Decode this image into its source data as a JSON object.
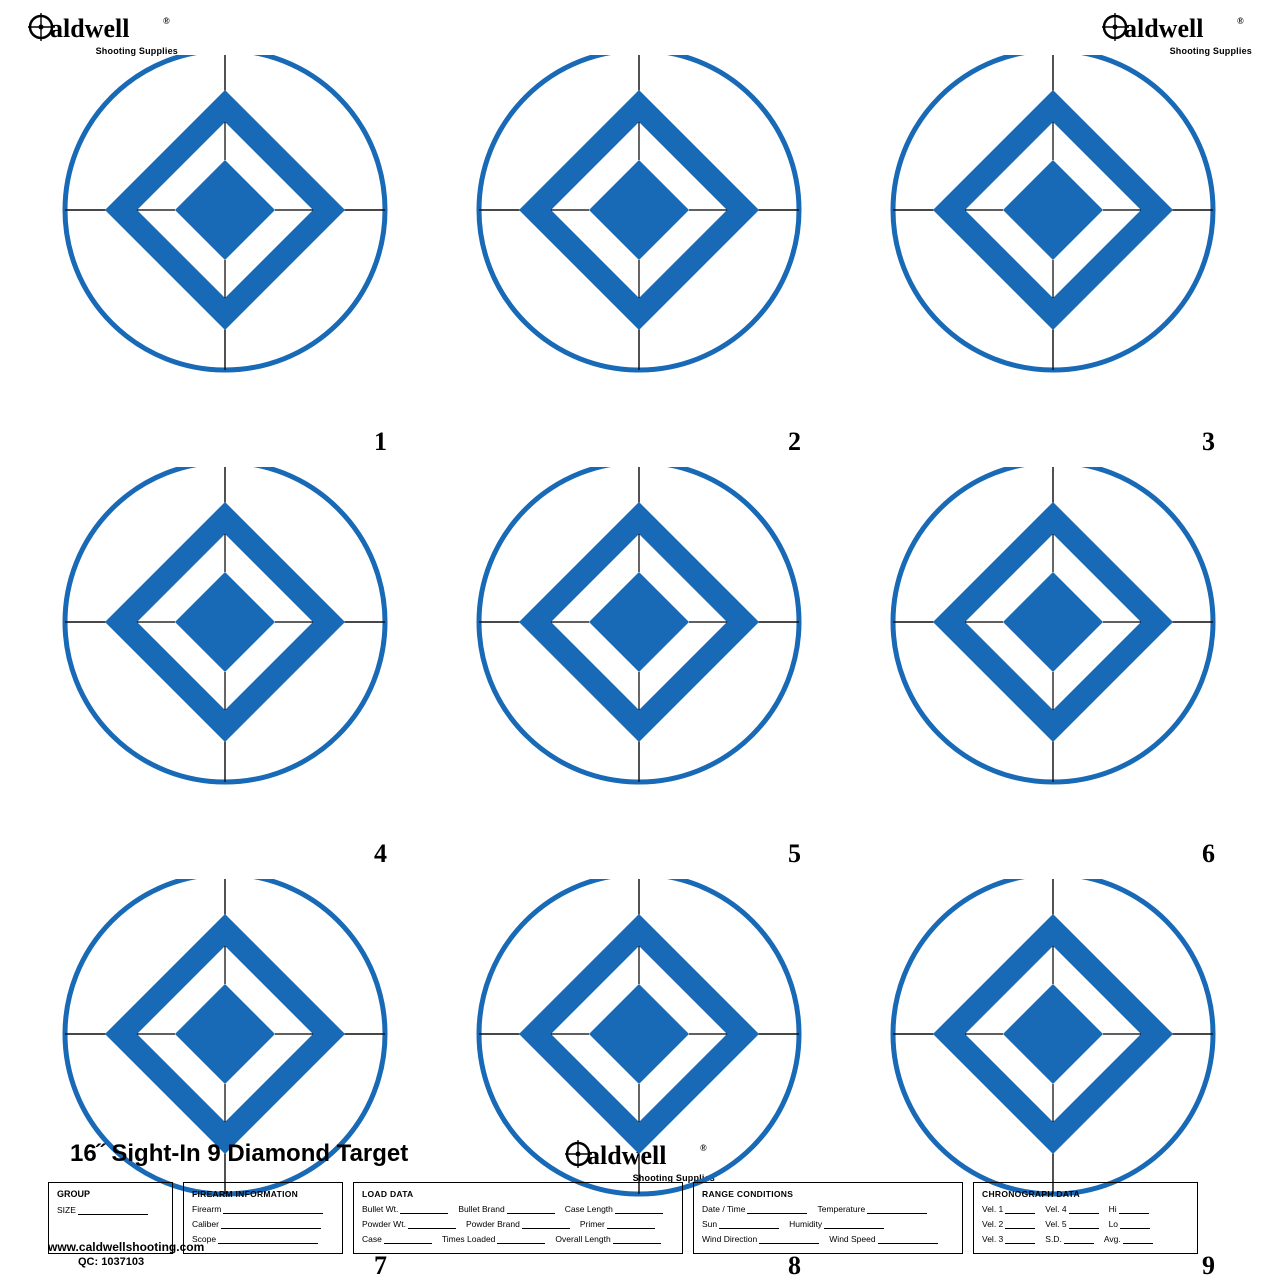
{
  "brand": {
    "name": "Caldwell",
    "registered": "®",
    "tagline": "Shooting Supplies"
  },
  "product_title": "16˝ Sight-In 9 Diamond Target",
  "targets": [
    {
      "number": "1"
    },
    {
      "number": "2"
    },
    {
      "number": "3"
    },
    {
      "number": "4"
    },
    {
      "number": "5"
    },
    {
      "number": "6"
    },
    {
      "number": "7"
    },
    {
      "number": "8"
    },
    {
      "number": "9"
    }
  ],
  "target_style": {
    "circle_stroke": "#1869b6",
    "circle_stroke_width": 5,
    "crosshair_stroke": "#000000",
    "crosshair_width": 1.2,
    "diamond_fill": "#1869b6",
    "bg": "#ffffff"
  },
  "form": {
    "group": {
      "label1": "GROUP",
      "label2": "SIZE"
    },
    "firearm": {
      "header": "FIREARM INFORMATION",
      "fields": [
        "Firearm",
        "Caliber",
        "Scope"
      ]
    },
    "load": {
      "header": "LOAD DATA",
      "rows": [
        [
          "Bullet Wt.",
          "Bullet Brand",
          "Case Length"
        ],
        [
          "Powder Wt.",
          "Powder Brand",
          "Primer"
        ],
        [
          "Case",
          "Times Loaded",
          "Overall Length"
        ]
      ]
    },
    "range": {
      "header": "RANGE CONDITIONS",
      "rows": [
        [
          "Date / Time",
          "Temperature"
        ],
        [
          "Sun",
          "Humidity"
        ],
        [
          "Wind Direction",
          "Wind Speed"
        ]
      ]
    },
    "chrono": {
      "header": "CHRONOGRAPH DATA",
      "rows": [
        [
          "Vel. 1",
          "Vel. 4",
          "Hi"
        ],
        [
          "Vel. 2",
          "Vel. 5",
          "Lo"
        ],
        [
          "Vel. 3",
          "S.D.",
          "Avg."
        ]
      ]
    }
  },
  "footer": {
    "url": "www.caldwellshooting.com",
    "qc_label": "QC:",
    "qc": "1037103"
  }
}
